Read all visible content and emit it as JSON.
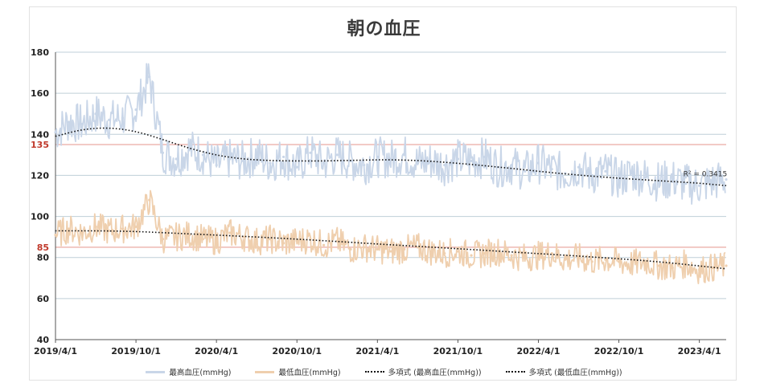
{
  "chart_data": {
    "type": "line",
    "title": "朝の血圧",
    "x_tick_labels": [
      "2019/4/1",
      "2019/10/1",
      "2020/4/1",
      "2020/10/1",
      "2021/4/1",
      "2021/10/1",
      "2022/4/1",
      "2022/10/1",
      "2023/4/1"
    ],
    "y_ticks": [
      40,
      60,
      80,
      100,
      120,
      140,
      160,
      180
    ],
    "ylim": [
      40,
      180
    ],
    "xlim_months": [
      0,
      50
    ],
    "reference_lines": [
      {
        "value": 135,
        "label": "135",
        "color": "#e8a19a"
      },
      {
        "value": 85,
        "label": "85",
        "color": "#e8a19a"
      }
    ],
    "grid": "horizontal",
    "legend_position": "bottom",
    "series": [
      {
        "name": "最高血圧(mmHg)",
        "kind": "data",
        "color": "#c9d6e8",
        "x": [
          0,
          1,
          2,
          3,
          4,
          5,
          6,
          7,
          8,
          9,
          10,
          11,
          12,
          13,
          14,
          15,
          16,
          17,
          18,
          19,
          20,
          21,
          22,
          23,
          24,
          25,
          26,
          27,
          28,
          29,
          30,
          31,
          32,
          33,
          34,
          35,
          36,
          37,
          38,
          39,
          40,
          41,
          42,
          43,
          44,
          45,
          46,
          47,
          48,
          49,
          50
        ],
        "values": [
          141,
          146,
          145,
          150,
          147,
          148,
          152,
          168,
          131,
          128,
          133,
          130,
          125,
          128,
          127,
          130,
          126,
          129,
          124,
          131,
          126,
          130,
          127,
          125,
          129,
          128,
          130,
          126,
          127,
          125,
          128,
          127,
          129,
          124,
          125,
          122,
          126,
          123,
          121,
          124,
          120,
          122,
          118,
          121,
          119,
          117,
          118,
          116,
          115,
          117,
          118
        ]
      },
      {
        "name": "最低血圧(mmHg)",
        "kind": "data",
        "color": "#efcfae",
        "x": [
          0,
          1,
          2,
          3,
          4,
          5,
          6,
          7,
          8,
          9,
          10,
          11,
          12,
          13,
          14,
          15,
          16,
          17,
          18,
          19,
          20,
          21,
          22,
          23,
          24,
          25,
          26,
          27,
          28,
          29,
          30,
          31,
          32,
          33,
          34,
          35,
          36,
          37,
          38,
          39,
          40,
          41,
          42,
          43,
          44,
          45,
          46,
          47,
          48,
          49,
          50
        ],
        "values": [
          91,
          94,
          92,
          95,
          93,
          94,
          95,
          108,
          89,
          90,
          91,
          89,
          88,
          92,
          90,
          88,
          89,
          87,
          88,
          89,
          86,
          88,
          84,
          85,
          84,
          83,
          84,
          85,
          83,
          82,
          83,
          81,
          82,
          83,
          81,
          80,
          81,
          82,
          79,
          80,
          78,
          79,
          78,
          77,
          78,
          76,
          75,
          77,
          74,
          75,
          76
        ]
      },
      {
        "name": "多項式 (最高血圧(mmHg))",
        "kind": "trend",
        "color": "#111111",
        "x": [
          0,
          2,
          4,
          6,
          8,
          10,
          12,
          14,
          16,
          18,
          20,
          22,
          24,
          26,
          28,
          30,
          32,
          34,
          36,
          38,
          40,
          42,
          44,
          46,
          48,
          50
        ],
        "values": [
          139,
          142.5,
          143.3,
          141.5,
          137.5,
          133.1,
          129.8,
          127.9,
          127.2,
          127.0,
          127.0,
          127.3,
          127.6,
          127.5,
          126.9,
          125.9,
          124.7,
          123.4,
          122.0,
          120.7,
          119.6,
          118.6,
          117.8,
          117.0,
          116.2,
          115.0
        ]
      },
      {
        "name": "多項式 (最低血圧(mmHg))",
        "kind": "trend",
        "color": "#111111",
        "x": [
          0,
          5,
          10,
          15,
          20,
          25,
          30,
          35,
          40,
          45,
          50
        ],
        "values": [
          93,
          93,
          91.5,
          90,
          88.2,
          86.2,
          84.3,
          82.3,
          80.3,
          78,
          74.5
        ]
      }
    ],
    "annotations": [
      {
        "text": "R² = 0.3415"
      }
    ]
  }
}
